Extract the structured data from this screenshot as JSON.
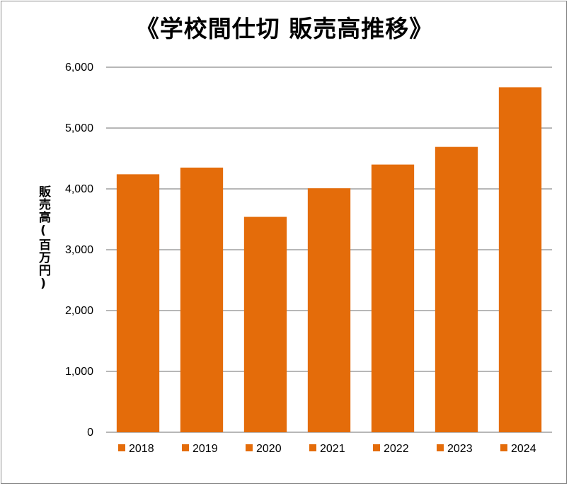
{
  "chart_data": {
    "type": "bar",
    "title": "《学校間仕切 販売高推移》",
    "xlabel": "",
    "ylabel": "販売高(百万円)",
    "categories": [
      "2018",
      "2019",
      "2020",
      "2021",
      "2022",
      "2023",
      "2024"
    ],
    "values": [
      4240,
      4350,
      3540,
      4010,
      4400,
      4690,
      5670
    ],
    "ylim": [
      0,
      6000
    ],
    "yticks": [
      0,
      1000,
      2000,
      3000,
      4000,
      5000,
      6000
    ],
    "ytick_labels": [
      "0",
      "1,000",
      "2,000",
      "3,000",
      "4,000",
      "5,000",
      "6,000"
    ],
    "grid": true,
    "legend_position": "bottom",
    "bar_color": "#e46c0a",
    "grid_color": "#8c8c8c"
  }
}
